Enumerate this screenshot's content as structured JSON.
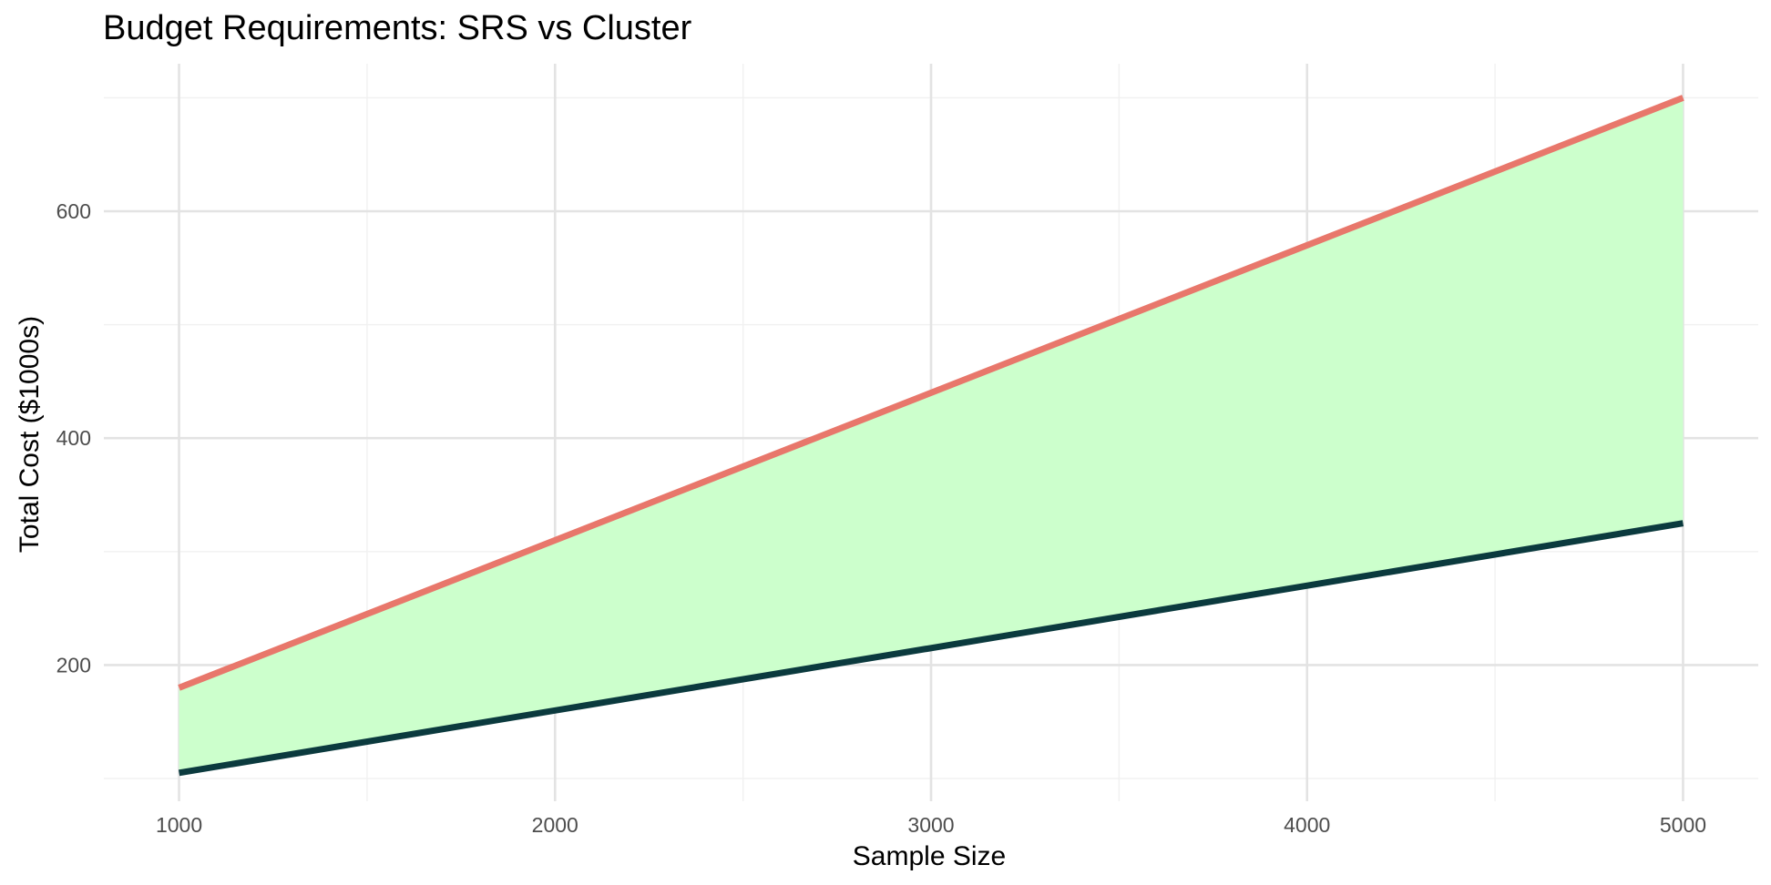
{
  "chart_data": {
    "type": "line",
    "title": "Budget Requirements: SRS vs Cluster",
    "xlabel": "Sample Size",
    "ylabel": "Total Cost ($1000s)",
    "xlim": [
      800,
      5200
    ],
    "ylim": [
      80,
      730
    ],
    "x_ticks": [
      1000,
      2000,
      3000,
      4000,
      5000
    ],
    "y_ticks": [
      200,
      400,
      600
    ],
    "x_minor": [
      1500,
      2500,
      3500,
      4500
    ],
    "y_minor": [
      100,
      300,
      500,
      700
    ],
    "grid": true,
    "legend": "none",
    "x": [
      1000,
      5000
    ],
    "series": [
      {
        "values": [
          180,
          700
        ],
        "color": "#e8776b"
      },
      {
        "values": [
          105,
          325
        ],
        "color": "#0b3a3e"
      }
    ],
    "fill_between": {
      "color": "#ccffcc"
    }
  }
}
